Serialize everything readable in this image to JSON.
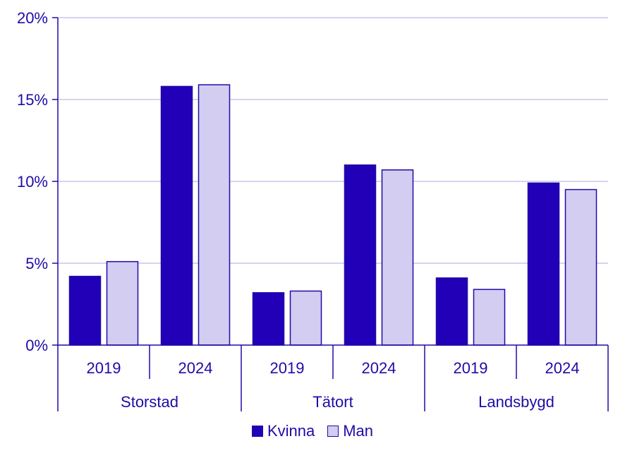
{
  "chart_data": {
    "type": "bar",
    "groups": [
      {
        "label": "Storstad",
        "years": [
          "2019",
          "2024"
        ]
      },
      {
        "label": "Tätort",
        "years": [
          "2019",
          "2024"
        ]
      },
      {
        "label": "Landsbygd",
        "years": [
          "2019",
          "2024"
        ]
      }
    ],
    "categories": [
      "Storstad 2019",
      "Storstad 2024",
      "Tätort 2019",
      "Tätort 2024",
      "Landsbygd 2019",
      "Landsbygd 2024"
    ],
    "series": [
      {
        "name": "Kvinna",
        "color": "#2200b8",
        "values": [
          4.2,
          15.8,
          3.2,
          11.0,
          4.1,
          9.9
        ]
      },
      {
        "name": "Man",
        "color": "#d2cdf1",
        "values": [
          5.1,
          15.9,
          3.3,
          10.7,
          3.4,
          9.5
        ]
      }
    ],
    "ylim": [
      0,
      20
    ],
    "yticks": [
      "0%",
      "5%",
      "10%",
      "15%",
      "20%"
    ],
    "ytick_values": [
      0,
      5,
      10,
      15,
      20
    ],
    "grid": true,
    "legend_position": "bottom-center",
    "title": "",
    "xlabel": "",
    "ylabel": ""
  }
}
